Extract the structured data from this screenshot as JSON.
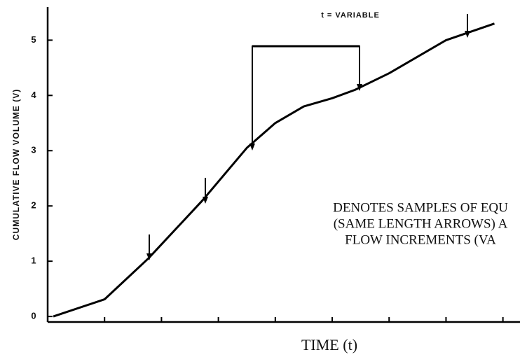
{
  "chart_data": {
    "type": "line",
    "ylabel": "CUMULATIVE FLOW VOLUME (V)",
    "xlabel": "TIME (t)",
    "x": [
      0.1,
      1,
      1.77,
      2.72,
      3.5,
      4,
      4.5,
      5,
      5.4,
      6,
      7,
      7.85
    ],
    "values": [
      0,
      0.31,
      1.05,
      2.1,
      3.05,
      3.5,
      3.8,
      3.95,
      4.1,
      4.4,
      5.0,
      5.3
    ],
    "color": "#000000",
    "xlim": [
      0,
      8.3
    ],
    "xticks": [
      1,
      2,
      3,
      4,
      5,
      6,
      7,
      8
    ],
    "ylim": [
      -0.1,
      5.6
    ],
    "yticks": [
      0,
      1,
      2,
      3,
      4,
      5
    ],
    "annotations": [
      "t = VARIABLE",
      "DENOTES SAMPLES OF EQU",
      "(SAME LENGTH ARROWS) A",
      "FLOW INCREMENTS (VA"
    ]
  }
}
